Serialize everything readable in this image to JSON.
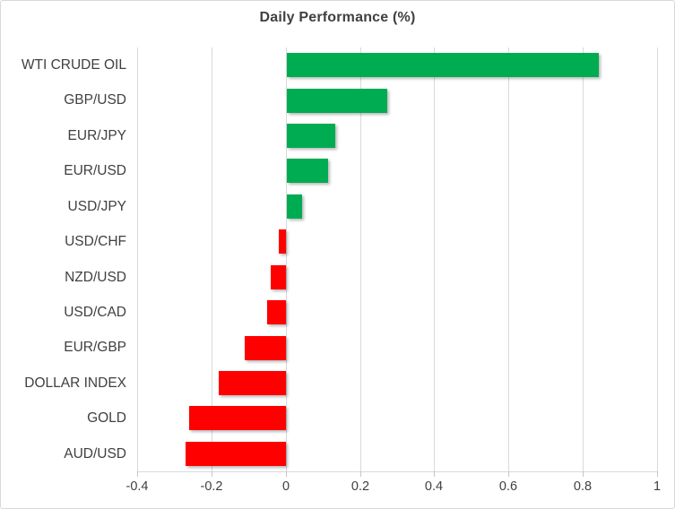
{
  "title": "Daily Performance (%)",
  "colors": {
    "positive_bar": "#00ac52",
    "negative_bar": "#ff0000",
    "gridline": "#d9d9d9",
    "tick_mark": "#c6c6c6",
    "text": "#404040",
    "border": "#d9d9d9",
    "background": "#ffffff"
  },
  "chart_data": {
    "type": "bar",
    "orientation": "horizontal",
    "title": "Daily Performance (%)",
    "categories": [
      "WTI CRUDE OIL",
      "GBP/USD",
      "EUR/JPY",
      "EUR/USD",
      "USD/JPY",
      "USD/CHF",
      "NZD/USD",
      "USD/CAD",
      "EUR/GBP",
      "DOLLAR INDEX",
      "GOLD",
      "AUD/USD"
    ],
    "values": [
      0.84,
      0.27,
      0.13,
      0.11,
      0.04,
      -0.02,
      -0.04,
      -0.05,
      -0.11,
      -0.18,
      -0.26,
      -0.27
    ],
    "xlabel": "",
    "ylabel": "",
    "xlim": [
      -0.4,
      1.0
    ],
    "xticks": [
      -0.4,
      -0.2,
      0,
      0.2,
      0.4,
      0.6,
      0.8,
      1
    ],
    "xtick_labels": [
      "-0.4",
      "-0.2",
      "0",
      "0.2",
      "0.4",
      "0.6",
      "0.8",
      "1"
    ],
    "grid": true,
    "legend": false,
    "positive_color": "#00ac52",
    "negative_color": "#ff0000"
  }
}
